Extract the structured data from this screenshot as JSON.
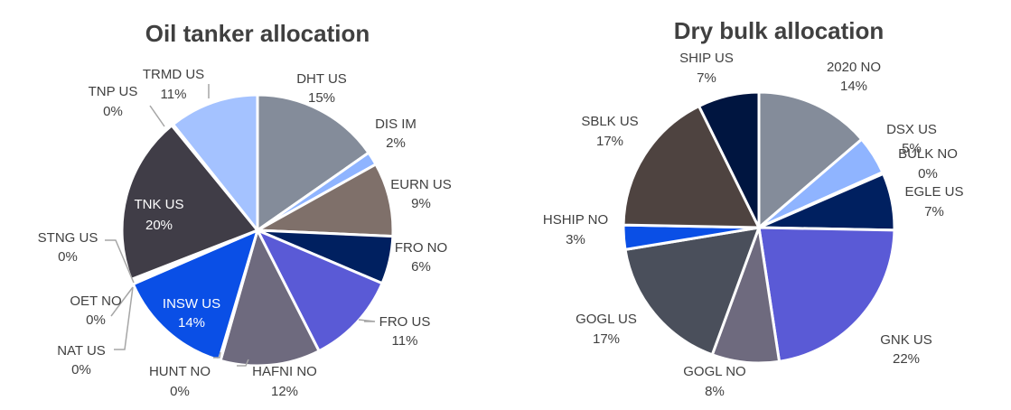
{
  "chart_data": [
    {
      "type": "pie",
      "title": "Oil tanker allocation",
      "slices": [
        {
          "name": "DHT US",
          "pct_label": "15%",
          "value": 15.3,
          "color": "#848c9a"
        },
        {
          "name": "DIS IM",
          "pct_label": "2%",
          "value": 1.6,
          "color": "#8fb4ff"
        },
        {
          "name": "EURN US",
          "pct_label": "9%",
          "value": 8.8,
          "color": "#7f706a"
        },
        {
          "name": "FRO NO",
          "pct_label": "6%",
          "value": 5.7,
          "color": "#002060"
        },
        {
          "name": "FRO US",
          "pct_label": "11%",
          "value": 11.1,
          "color": "#5a5ad6"
        },
        {
          "name": "HAFNI NO",
          "pct_label": "12%",
          "value": 11.9,
          "color": "#6e6a7e"
        },
        {
          "name": "HUNT NO",
          "pct_label": "0%",
          "value": 0.2,
          "color": "#848c9a"
        },
        {
          "name": "INSW US",
          "pct_label": "14%",
          "value": 13.9,
          "color": "#0a4fe6"
        },
        {
          "name": "NAT US",
          "pct_label": "0%",
          "value": 0.2,
          "color": "#7f706a"
        },
        {
          "name": "OET NO",
          "pct_label": "0%",
          "value": 0.2,
          "color": "#002060"
        },
        {
          "name": "STNG US",
          "pct_label": "0%",
          "value": 0.2,
          "color": "#5a5ad6"
        },
        {
          "name": "TNK US",
          "pct_label": "20%",
          "value": 20.0,
          "color": "#403d47"
        },
        {
          "name": "TNP US",
          "pct_label": "0%",
          "value": 0.2,
          "color": "#848c9a"
        },
        {
          "name": "TRMD US",
          "pct_label": "11%",
          "value": 10.7,
          "color": "#a4c2ff"
        }
      ]
    },
    {
      "type": "pie",
      "title": "Dry bulk allocation",
      "slices": [
        {
          "name": "2020 NO",
          "pct_label": "14%",
          "value": 13.7,
          "color": "#848c9a"
        },
        {
          "name": "DSX US",
          "pct_label": "5%",
          "value": 4.6,
          "color": "#8fb4ff"
        },
        {
          "name": "BULK NO",
          "pct_label": "0%",
          "value": 0.2,
          "color": "#7f706a"
        },
        {
          "name": "EGLE US",
          "pct_label": "7%",
          "value": 6.8,
          "color": "#002060"
        },
        {
          "name": "GNK US",
          "pct_label": "22%",
          "value": 22.3,
          "color": "#5a5ad6"
        },
        {
          "name": "GOGL NO",
          "pct_label": "8%",
          "value": 8.0,
          "color": "#6e6a7e"
        },
        {
          "name": "GOGL US",
          "pct_label": "17%",
          "value": 16.8,
          "color": "#4a4f5b"
        },
        {
          "name": "HSHIP NO",
          "pct_label": "3%",
          "value": 2.9,
          "color": "#0a4fe6"
        },
        {
          "name": "SBLK US",
          "pct_label": "17%",
          "value": 17.4,
          "color": "#4e4340"
        },
        {
          "name": "SHIP US",
          "pct_label": "7%",
          "value": 7.3,
          "color": "#001540"
        }
      ]
    }
  ]
}
